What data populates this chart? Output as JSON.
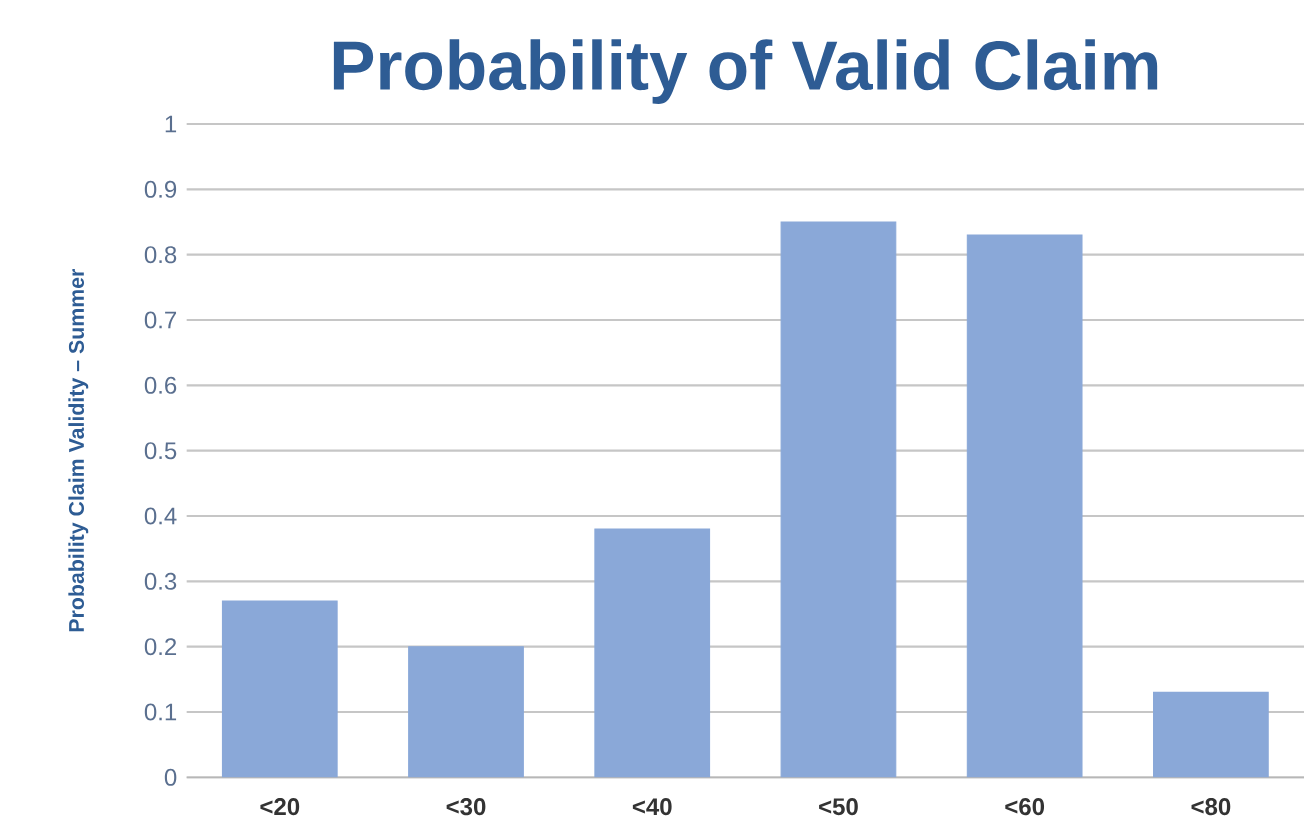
{
  "chart_data": {
    "type": "bar",
    "title": "Probability of Valid Claim",
    "ylabel": "Probability Claim Validity – Summer",
    "categories": [
      "<20",
      "<30",
      "<40",
      "<50",
      "<60",
      "<80"
    ],
    "values": [
      0.27,
      0.2,
      0.38,
      0.85,
      0.83,
      0.13
    ],
    "color": "#8aa8d8",
    "ylim": [
      0,
      1
    ],
    "yticks": [
      0,
      0.1,
      0.2,
      0.3,
      0.4,
      0.5,
      0.6,
      0.7,
      0.8,
      0.9,
      1
    ],
    "grid": "y"
  }
}
